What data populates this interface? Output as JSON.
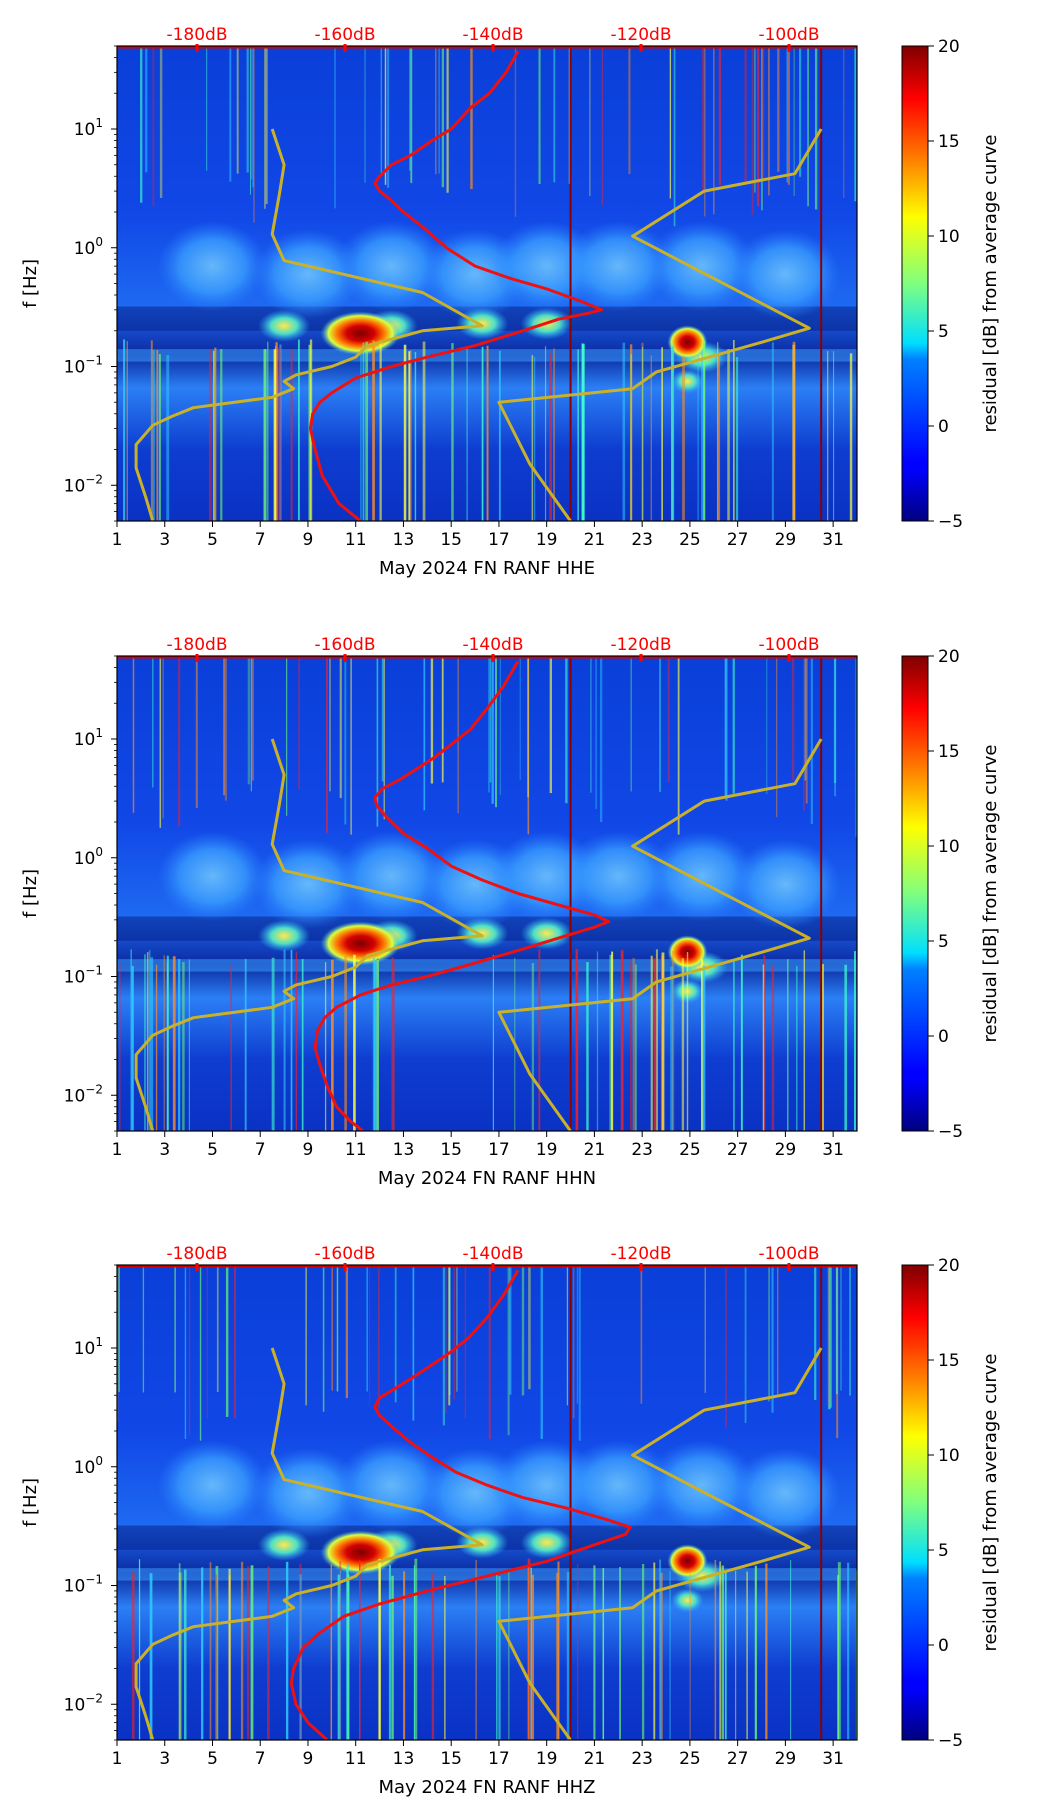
{
  "chart_data": [
    {
      "type": "heatmap",
      "title": "",
      "xlabel": "May 2024 FN RANF  HHE",
      "ylabel": "f [Hz]",
      "xlim": [
        1,
        32
      ],
      "ylim": [
        0.005,
        50
      ],
      "yscale": "log",
      "x_ticks": [
        "1",
        "3",
        "5",
        "7",
        "9",
        "11",
        "13",
        "15",
        "17",
        "19",
        "21",
        "23",
        "25",
        "27",
        "29",
        "31"
      ],
      "y_ticks": [
        {
          "value": 10,
          "base": "10",
          "exp": "1"
        },
        {
          "value": 1,
          "base": "10",
          "exp": "0"
        },
        {
          "value": 0.1,
          "base": "10",
          "exp": "−1"
        },
        {
          "value": 0.01,
          "base": "10",
          "exp": "−2"
        }
      ],
      "db_scale_labels": [
        "-180dB",
        "-160dB",
        "-140dB",
        "-120dB",
        "-100dB"
      ],
      "colorbar": {
        "label": "residual [dB] from average curve",
        "range": [
          -5,
          20
        ],
        "ticks": [
          "−5",
          "0",
          "5",
          "10",
          "15",
          "20"
        ]
      },
      "series": [
        {
          "name": "mean PSD (red)",
          "color": "#ee1111",
          "x": [
            11.2,
            10.3,
            9.6,
            9.3,
            9.1,
            9.2,
            9.5,
            10.0,
            11.0,
            12.5,
            14.0,
            16.0,
            18.0,
            19.5,
            20.7,
            21.3,
            20.5,
            19.0,
            17.5,
            16.0,
            14.8,
            13.8,
            13.0,
            12.5,
            12.0,
            11.8,
            12.0,
            12.5,
            13.3,
            14.2,
            15.0,
            15.8,
            16.6,
            17.3,
            17.8
          ],
          "y": [
            0.005,
            0.007,
            0.012,
            0.02,
            0.03,
            0.04,
            0.05,
            0.06,
            0.08,
            0.1,
            0.12,
            0.15,
            0.2,
            0.25,
            0.28,
            0.3,
            0.35,
            0.45,
            0.55,
            0.7,
            1.0,
            1.5,
            2.0,
            2.5,
            3.0,
            3.5,
            4.0,
            5.0,
            6.0,
            8.0,
            10,
            15,
            20,
            30,
            45
          ]
        },
        {
          "name": "noise model (olive)",
          "color": "#c9b12a",
          "x": [
            2.5,
            2.2,
            1.8,
            1.8,
            2.5,
            3.3,
            4.2,
            7.5,
            8.4,
            8.0,
            8.5,
            10,
            11,
            11.5,
            13.8,
            16.3,
            13.8,
            8.0,
            7.5,
            7.8,
            8.0,
            7.5
          ],
          "y": [
            0.005,
            0.008,
            0.014,
            0.022,
            0.032,
            0.038,
            0.045,
            0.055,
            0.065,
            0.075,
            0.085,
            0.1,
            0.12,
            0.15,
            0.2,
            0.22,
            0.42,
            0.78,
            1.3,
            2.8,
            5.0,
            10
          ]
        },
        {
          "name": "noise model right (olive)",
          "color": "#c9b12a",
          "x": [
            20.0,
            18.3,
            17.0,
            22.6,
            23.6,
            28.0,
            30.0,
            22.6,
            25.6,
            29.4,
            30.5
          ],
          "y": [
            0.005,
            0.015,
            0.05,
            0.065,
            0.09,
            0.16,
            0.21,
            1.25,
            3.0,
            4.2,
            10
          ]
        }
      ]
    },
    {
      "type": "heatmap",
      "title": "",
      "xlabel": "May 2024 FN RANF  HHN",
      "ylabel": "f [Hz]",
      "xlim": [
        1,
        32
      ],
      "ylim": [
        0.005,
        50
      ],
      "yscale": "log",
      "x_ticks": [
        "1",
        "3",
        "5",
        "7",
        "9",
        "11",
        "13",
        "15",
        "17",
        "19",
        "21",
        "23",
        "25",
        "27",
        "29",
        "31"
      ],
      "y_ticks": [
        {
          "value": 10,
          "base": "10",
          "exp": "1"
        },
        {
          "value": 1,
          "base": "10",
          "exp": "0"
        },
        {
          "value": 0.1,
          "base": "10",
          "exp": "−1"
        },
        {
          "value": 0.01,
          "base": "10",
          "exp": "−2"
        }
      ],
      "db_scale_labels": [
        "-180dB",
        "-160dB",
        "-140dB",
        "-120dB",
        "-100dB"
      ],
      "colorbar": {
        "label": "residual [dB] from average curve",
        "range": [
          -5,
          20
        ],
        "ticks": [
          "−5",
          "0",
          "5",
          "10",
          "15",
          "20"
        ]
      },
      "series": [
        {
          "name": "mean PSD (red)",
          "color": "#ee1111",
          "x": [
            11.3,
            10.8,
            10.2,
            9.8,
            9.5,
            9.3,
            9.4,
            9.7,
            10.2,
            11.2,
            12.5,
            14.0,
            16.0,
            18.0,
            19.8,
            21.0,
            21.6,
            21.0,
            19.5,
            17.8,
            16.3,
            15.0,
            14.0,
            13.0,
            12.3,
            11.9,
            11.8,
            12.1,
            12.8,
            13.5,
            14.3,
            15.0,
            15.8,
            16.5,
            17.2,
            17.8
          ],
          "y": [
            0.005,
            0.006,
            0.008,
            0.012,
            0.018,
            0.025,
            0.035,
            0.045,
            0.055,
            0.07,
            0.085,
            0.1,
            0.13,
            0.17,
            0.22,
            0.26,
            0.29,
            0.33,
            0.4,
            0.5,
            0.65,
            0.85,
            1.2,
            1.6,
            2.2,
            2.7,
            3.2,
            3.8,
            4.5,
            5.5,
            7.0,
            9.0,
            12,
            18,
            28,
            45
          ]
        },
        {
          "name": "noise model (olive)",
          "color": "#c9b12a",
          "x": [
            2.5,
            2.2,
            1.8,
            1.8,
            2.5,
            3.3,
            4.2,
            7.5,
            8.4,
            8.0,
            8.5,
            10,
            11,
            11.5,
            13.8,
            16.3,
            13.8,
            8.0,
            7.5,
            7.8,
            8.0,
            7.5
          ],
          "y": [
            0.005,
            0.008,
            0.014,
            0.022,
            0.032,
            0.038,
            0.045,
            0.055,
            0.065,
            0.075,
            0.085,
            0.1,
            0.12,
            0.15,
            0.2,
            0.22,
            0.42,
            0.78,
            1.3,
            2.8,
            5.0,
            10
          ]
        },
        {
          "name": "noise model right (olive)",
          "color": "#c9b12a",
          "x": [
            20.0,
            18.3,
            17.0,
            22.6,
            23.6,
            28.0,
            30.0,
            22.6,
            25.6,
            29.4,
            30.5
          ],
          "y": [
            0.005,
            0.015,
            0.05,
            0.065,
            0.09,
            0.16,
            0.21,
            1.25,
            3.0,
            4.2,
            10
          ]
        }
      ]
    },
    {
      "type": "heatmap",
      "title": "",
      "xlabel": "May 2024 FN RANF  HHZ",
      "ylabel": "f [Hz]",
      "xlim": [
        1,
        32
      ],
      "ylim": [
        0.005,
        50
      ],
      "yscale": "log",
      "x_ticks": [
        "1",
        "3",
        "5",
        "7",
        "9",
        "11",
        "13",
        "15",
        "17",
        "19",
        "21",
        "23",
        "25",
        "27",
        "29",
        "31"
      ],
      "y_ticks": [
        {
          "value": 10,
          "base": "10",
          "exp": "1"
        },
        {
          "value": 1,
          "base": "10",
          "exp": "0"
        },
        {
          "value": 0.1,
          "base": "10",
          "exp": "−1"
        },
        {
          "value": 0.01,
          "base": "10",
          "exp": "−2"
        }
      ],
      "db_scale_labels": [
        "-180dB",
        "-160dB",
        "-140dB",
        "-120dB",
        "-100dB"
      ],
      "colorbar": {
        "label": "residual [dB] from average curve",
        "range": [
          -5,
          20
        ],
        "ticks": [
          "−5",
          "0",
          "5",
          "10",
          "15",
          "20"
        ]
      },
      "series": [
        {
          "name": "mean PSD (red)",
          "color": "#ee1111",
          "x": [
            9.8,
            9.0,
            8.5,
            8.3,
            8.4,
            8.8,
            9.5,
            10.5,
            12.0,
            14.0,
            16.5,
            19.0,
            21.0,
            22.3,
            22.5,
            21.5,
            19.8,
            18.0,
            16.5,
            15.2,
            14.2,
            13.3,
            12.6,
            12.0,
            11.8,
            12.0,
            12.6,
            13.3,
            14.1,
            14.9,
            15.7,
            16.5,
            17.2,
            17.8
          ],
          "y": [
            0.005,
            0.007,
            0.01,
            0.015,
            0.02,
            0.03,
            0.04,
            0.055,
            0.07,
            0.09,
            0.12,
            0.16,
            0.22,
            0.27,
            0.31,
            0.36,
            0.45,
            0.55,
            0.7,
            0.9,
            1.2,
            1.6,
            2.1,
            2.7,
            3.2,
            3.8,
            4.5,
            5.5,
            7.0,
            9.0,
            12,
            18,
            28,
            45
          ]
        },
        {
          "name": "noise model (olive)",
          "color": "#c9b12a",
          "x": [
            2.5,
            2.2,
            1.8,
            1.8,
            2.5,
            3.3,
            4.2,
            7.5,
            8.4,
            8.0,
            8.5,
            10,
            11,
            11.5,
            13.8,
            16.3,
            13.8,
            8.0,
            7.5,
            7.8,
            8.0,
            7.5
          ],
          "y": [
            0.005,
            0.008,
            0.014,
            0.022,
            0.032,
            0.038,
            0.045,
            0.055,
            0.065,
            0.075,
            0.085,
            0.1,
            0.12,
            0.15,
            0.2,
            0.22,
            0.42,
            0.78,
            1.3,
            2.8,
            5.0,
            10
          ]
        },
        {
          "name": "noise model right (olive)",
          "color": "#c9b12a",
          "x": [
            20.0,
            18.3,
            17.0,
            22.6,
            23.6,
            28.0,
            30.0,
            22.6,
            25.6,
            29.4,
            30.5
          ],
          "y": [
            0.005,
            0.015,
            0.05,
            0.065,
            0.09,
            0.16,
            0.21,
            1.25,
            3.0,
            4.2,
            10
          ]
        }
      ]
    }
  ]
}
